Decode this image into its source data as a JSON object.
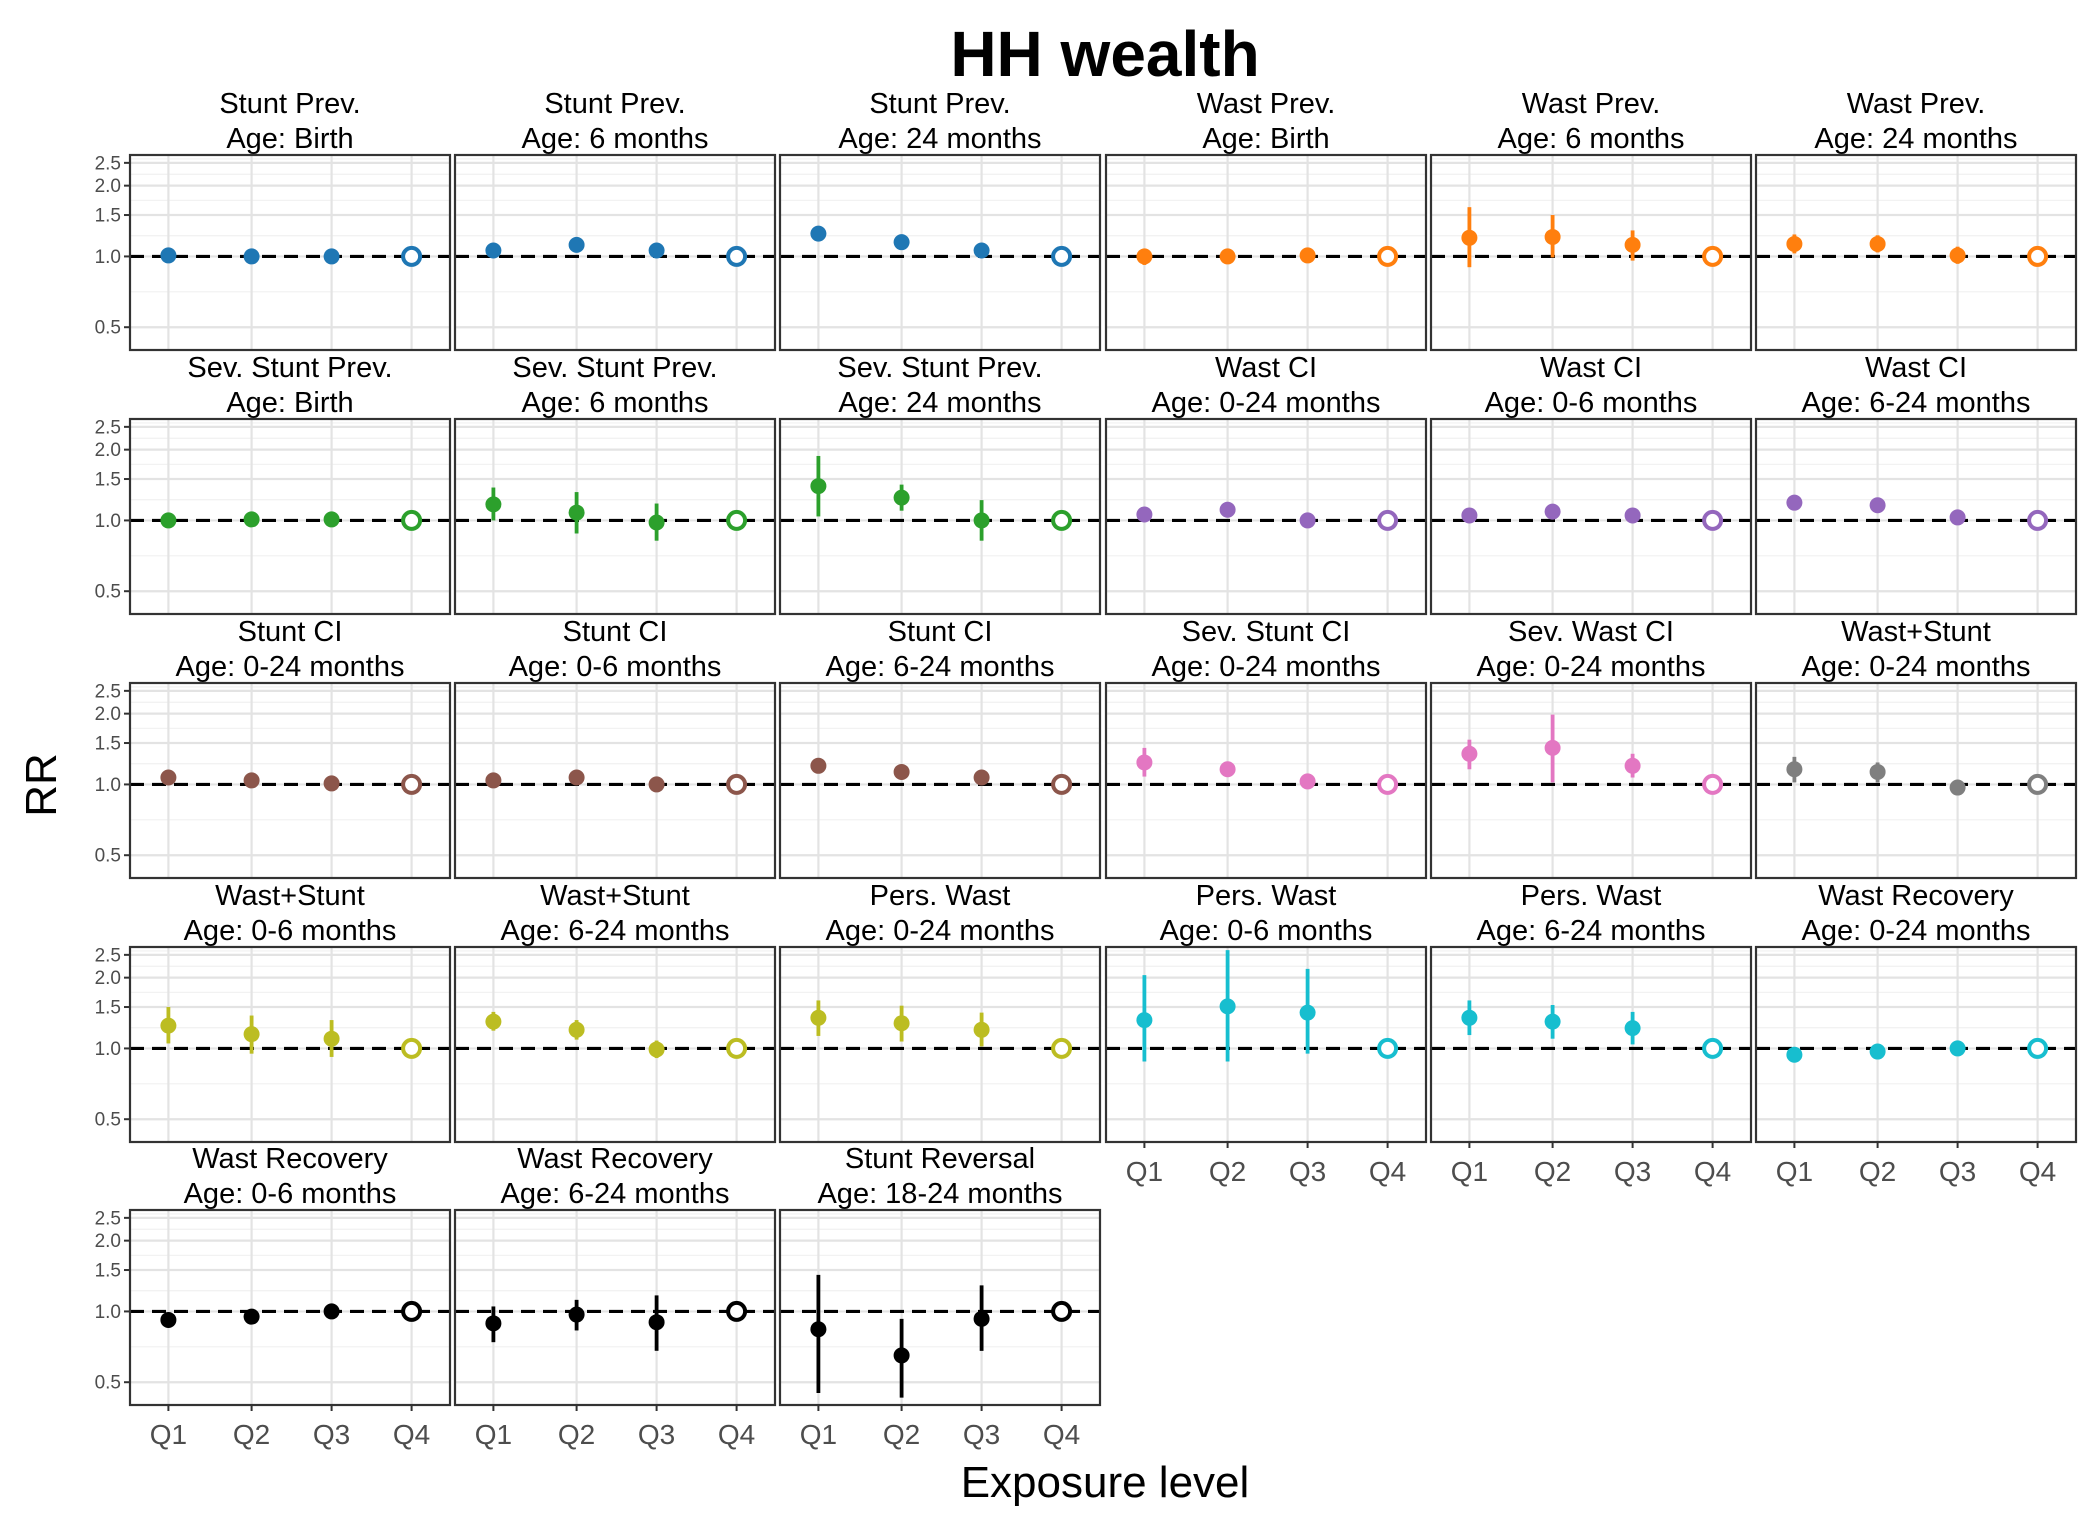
{
  "chart_data": {
    "type": "scatter",
    "title": "HH wealth",
    "xlabel": "Exposure level",
    "ylabel": "RR",
    "categories": [
      "Q1",
      "Q2",
      "Q3",
      "Q4"
    ],
    "reference_category": "Q4",
    "reference_line": 1.0,
    "y_scale": "log",
    "ylim": [
      0.4,
      2.7
    ],
    "yticks": [
      0.5,
      1.0,
      1.5,
      2.0,
      2.5
    ],
    "ytick_labels": [
      "0.5",
      "1.0",
      "1.5",
      "2.0",
      "2.5"
    ],
    "grid": true,
    "legend": "none",
    "panels": [
      {
        "title": [
          "Stunt Prev.",
          "Age: Birth"
        ],
        "color": "#1f77b4",
        "rr": [
          1.01,
          1.0,
          1.0,
          1.0
        ],
        "lower": [
          0.97,
          0.97,
          0.98,
          1.0
        ],
        "upper": [
          1.04,
          1.03,
          1.02,
          1.0
        ]
      },
      {
        "title": [
          "Stunt Prev.",
          "Age: 6 months"
        ],
        "color": "#1f77b4",
        "rr": [
          1.06,
          1.12,
          1.06,
          1.0
        ],
        "lower": [
          1.02,
          1.08,
          1.02,
          1.0
        ],
        "upper": [
          1.1,
          1.16,
          1.1,
          1.0
        ]
      },
      {
        "title": [
          "Stunt Prev.",
          "Age: 24 months"
        ],
        "color": "#1f77b4",
        "rr": [
          1.25,
          1.15,
          1.06,
          1.0
        ],
        "lower": [
          1.21,
          1.11,
          1.02,
          1.0
        ],
        "upper": [
          1.29,
          1.19,
          1.1,
          1.0
        ]
      },
      {
        "title": [
          "Wast Prev.",
          "Age: Birth"
        ],
        "color": "#ff7f0e",
        "rr": [
          1.0,
          1.0,
          1.01,
          1.0
        ],
        "lower": [
          0.92,
          0.97,
          0.97,
          1.0
        ],
        "upper": [
          1.08,
          1.03,
          1.05,
          1.0
        ]
      },
      {
        "title": [
          "Wast Prev.",
          "Age: 6 months"
        ],
        "color": "#ff7f0e",
        "rr": [
          1.2,
          1.21,
          1.12,
          1.0
        ],
        "lower": [
          0.9,
          0.99,
          0.96,
          1.0
        ],
        "upper": [
          1.62,
          1.5,
          1.29,
          1.0
        ]
      },
      {
        "title": [
          "Wast Prev.",
          "Age: 24 months"
        ],
        "color": "#ff7f0e",
        "rr": [
          1.13,
          1.13,
          1.01,
          1.0
        ],
        "lower": [
          1.03,
          1.04,
          0.93,
          1.0
        ],
        "upper": [
          1.24,
          1.23,
          1.1,
          1.0
        ]
      },
      {
        "title": [
          "Sev. Stunt Prev.",
          "Age: Birth"
        ],
        "color": "#2ca02c",
        "rr": [
          1.0,
          1.01,
          1.01,
          1.0
        ],
        "lower": [
          0.97,
          0.98,
          0.98,
          1.0
        ],
        "upper": [
          1.03,
          1.04,
          1.04,
          1.0
        ]
      },
      {
        "title": [
          "Sev. Stunt Prev.",
          "Age: 6 months"
        ],
        "color": "#2ca02c",
        "rr": [
          1.17,
          1.08,
          0.98,
          1.0
        ],
        "lower": [
          1.0,
          0.88,
          0.82,
          1.0
        ],
        "upper": [
          1.38,
          1.32,
          1.18,
          1.0
        ]
      },
      {
        "title": [
          "Sev. Stunt Prev.",
          "Age: 24 months"
        ],
        "color": "#2ca02c",
        "rr": [
          1.4,
          1.25,
          1.0,
          1.0
        ],
        "lower": [
          1.04,
          1.1,
          0.82,
          1.0
        ],
        "upper": [
          1.88,
          1.42,
          1.22,
          1.0
        ]
      },
      {
        "title": [
          "Wast CI",
          "Age: 0-24 months"
        ],
        "color": "#9467bd",
        "rr": [
          1.06,
          1.11,
          1.0,
          1.0
        ],
        "lower": [
          1.02,
          1.07,
          0.97,
          1.0
        ],
        "upper": [
          1.1,
          1.16,
          1.03,
          1.0
        ]
      },
      {
        "title": [
          "Wast CI",
          "Age: 0-6 months"
        ],
        "color": "#9467bd",
        "rr": [
          1.05,
          1.09,
          1.05,
          1.0
        ],
        "lower": [
          1.0,
          1.03,
          1.0,
          1.0
        ],
        "upper": [
          1.1,
          1.16,
          1.1,
          1.0
        ]
      },
      {
        "title": [
          "Wast CI",
          "Age: 6-24 months"
        ],
        "color": "#9467bd",
        "rr": [
          1.19,
          1.16,
          1.03,
          1.0
        ],
        "lower": [
          1.14,
          1.11,
          0.99,
          1.0
        ],
        "upper": [
          1.24,
          1.21,
          1.07,
          1.0
        ]
      },
      {
        "title": [
          "Stunt CI",
          "Age: 0-24 months"
        ],
        "color": "#8c564b",
        "rr": [
          1.07,
          1.04,
          1.01,
          1.0
        ],
        "lower": [
          1.03,
          1.0,
          0.98,
          1.0
        ],
        "upper": [
          1.11,
          1.08,
          1.04,
          1.0
        ]
      },
      {
        "title": [
          "Stunt CI",
          "Age: 0-6 months"
        ],
        "color": "#8c564b",
        "rr": [
          1.04,
          1.07,
          1.0,
          1.0
        ],
        "lower": [
          0.97,
          1.02,
          0.96,
          1.0
        ],
        "upper": [
          1.11,
          1.12,
          1.04,
          1.0
        ]
      },
      {
        "title": [
          "Stunt CI",
          "Age: 6-24 months"
        ],
        "color": "#8c564b",
        "rr": [
          1.2,
          1.13,
          1.07,
          1.0
        ],
        "lower": [
          1.13,
          1.07,
          1.02,
          1.0
        ],
        "upper": [
          1.27,
          1.19,
          1.12,
          1.0
        ]
      },
      {
        "title": [
          "Sev. Stunt CI",
          "Age: 0-24 months"
        ],
        "color": "#e377c2",
        "rr": [
          1.24,
          1.16,
          1.03,
          1.0
        ],
        "lower": [
          1.08,
          1.08,
          0.98,
          1.0
        ],
        "upper": [
          1.43,
          1.25,
          1.09,
          1.0
        ]
      },
      {
        "title": [
          "Sev. Wast CI",
          "Age: 0-24 months"
        ],
        "color": "#e377c2",
        "rr": [
          1.35,
          1.43,
          1.2,
          1.0
        ],
        "lower": [
          1.16,
          1.02,
          1.07,
          1.0
        ],
        "upper": [
          1.55,
          1.98,
          1.35,
          1.0
        ]
      },
      {
        "title": [
          "Wast+Stunt",
          "Age: 0-24 months"
        ],
        "color": "#7f7f7f",
        "rr": [
          1.16,
          1.13,
          0.97,
          1.0
        ],
        "lower": [
          1.02,
          1.02,
          0.93,
          1.0
        ],
        "upper": [
          1.31,
          1.24,
          1.02,
          1.0
        ]
      },
      {
        "title": [
          "Wast+Stunt",
          "Age: 0-6 months"
        ],
        "color": "#bcbd22",
        "rr": [
          1.25,
          1.15,
          1.1,
          1.0
        ],
        "lower": [
          1.05,
          0.95,
          0.92,
          1.0
        ],
        "upper": [
          1.5,
          1.38,
          1.32,
          1.0
        ]
      },
      {
        "title": [
          "Wast+Stunt",
          "Age: 6-24 months"
        ],
        "color": "#bcbd22",
        "rr": [
          1.3,
          1.2,
          0.99,
          1.0
        ],
        "lower": [
          1.19,
          1.09,
          0.91,
          1.0
        ],
        "upper": [
          1.43,
          1.32,
          1.08,
          1.0
        ]
      },
      {
        "title": [
          "Pers. Wast",
          "Age: 0-24 months"
        ],
        "color": "#bcbd22",
        "rr": [
          1.35,
          1.28,
          1.2,
          1.0
        ],
        "lower": [
          1.13,
          1.07,
          1.02,
          1.0
        ],
        "upper": [
          1.6,
          1.52,
          1.42,
          1.0
        ]
      },
      {
        "title": [
          "Pers. Wast",
          "Age: 0-6 months"
        ],
        "color": "#17becf",
        "rr": [
          1.32,
          1.51,
          1.42,
          1.0
        ],
        "lower": [
          0.88,
          0.88,
          0.95,
          1.0
        ],
        "upper": [
          2.05,
          2.62,
          2.18,
          1.0
        ]
      },
      {
        "title": [
          "Pers. Wast",
          "Age: 6-24 months"
        ],
        "color": "#17becf",
        "rr": [
          1.35,
          1.3,
          1.22,
          1.0
        ],
        "lower": [
          1.14,
          1.1,
          1.04,
          1.0
        ],
        "upper": [
          1.6,
          1.53,
          1.43,
          1.0
        ]
      },
      {
        "title": [
          "Wast Recovery",
          "Age: 0-24 months"
        ],
        "color": "#17becf",
        "rr": [
          0.94,
          0.97,
          1.0,
          1.0
        ],
        "lower": [
          0.91,
          0.94,
          0.97,
          1.0
        ],
        "upper": [
          0.97,
          1.0,
          1.03,
          1.0
        ]
      },
      {
        "title": [
          "Wast Recovery",
          "Age: 0-6 months"
        ],
        "color": "#000000",
        "rr": [
          0.92,
          0.95,
          1.0,
          1.0
        ],
        "lower": [
          0.88,
          0.91,
          0.96,
          1.0
        ],
        "upper": [
          0.97,
          0.99,
          1.04,
          1.0
        ]
      },
      {
        "title": [
          "Wast Recovery",
          "Age: 6-24 months"
        ],
        "color": "#000000",
        "rr": [
          0.89,
          0.97,
          0.9,
          1.0
        ],
        "lower": [
          0.74,
          0.83,
          0.68,
          1.0
        ],
        "upper": [
          1.05,
          1.12,
          1.17,
          1.0
        ]
      },
      {
        "title": [
          "Stunt Reversal",
          "Age: 18-24 months"
        ],
        "color": "#000000",
        "rr": [
          0.84,
          0.65,
          0.93,
          1.0
        ],
        "lower": [
          0.45,
          0.43,
          0.68,
          1.0
        ],
        "upper": [
          1.43,
          0.93,
          1.29,
          1.0
        ]
      }
    ]
  }
}
